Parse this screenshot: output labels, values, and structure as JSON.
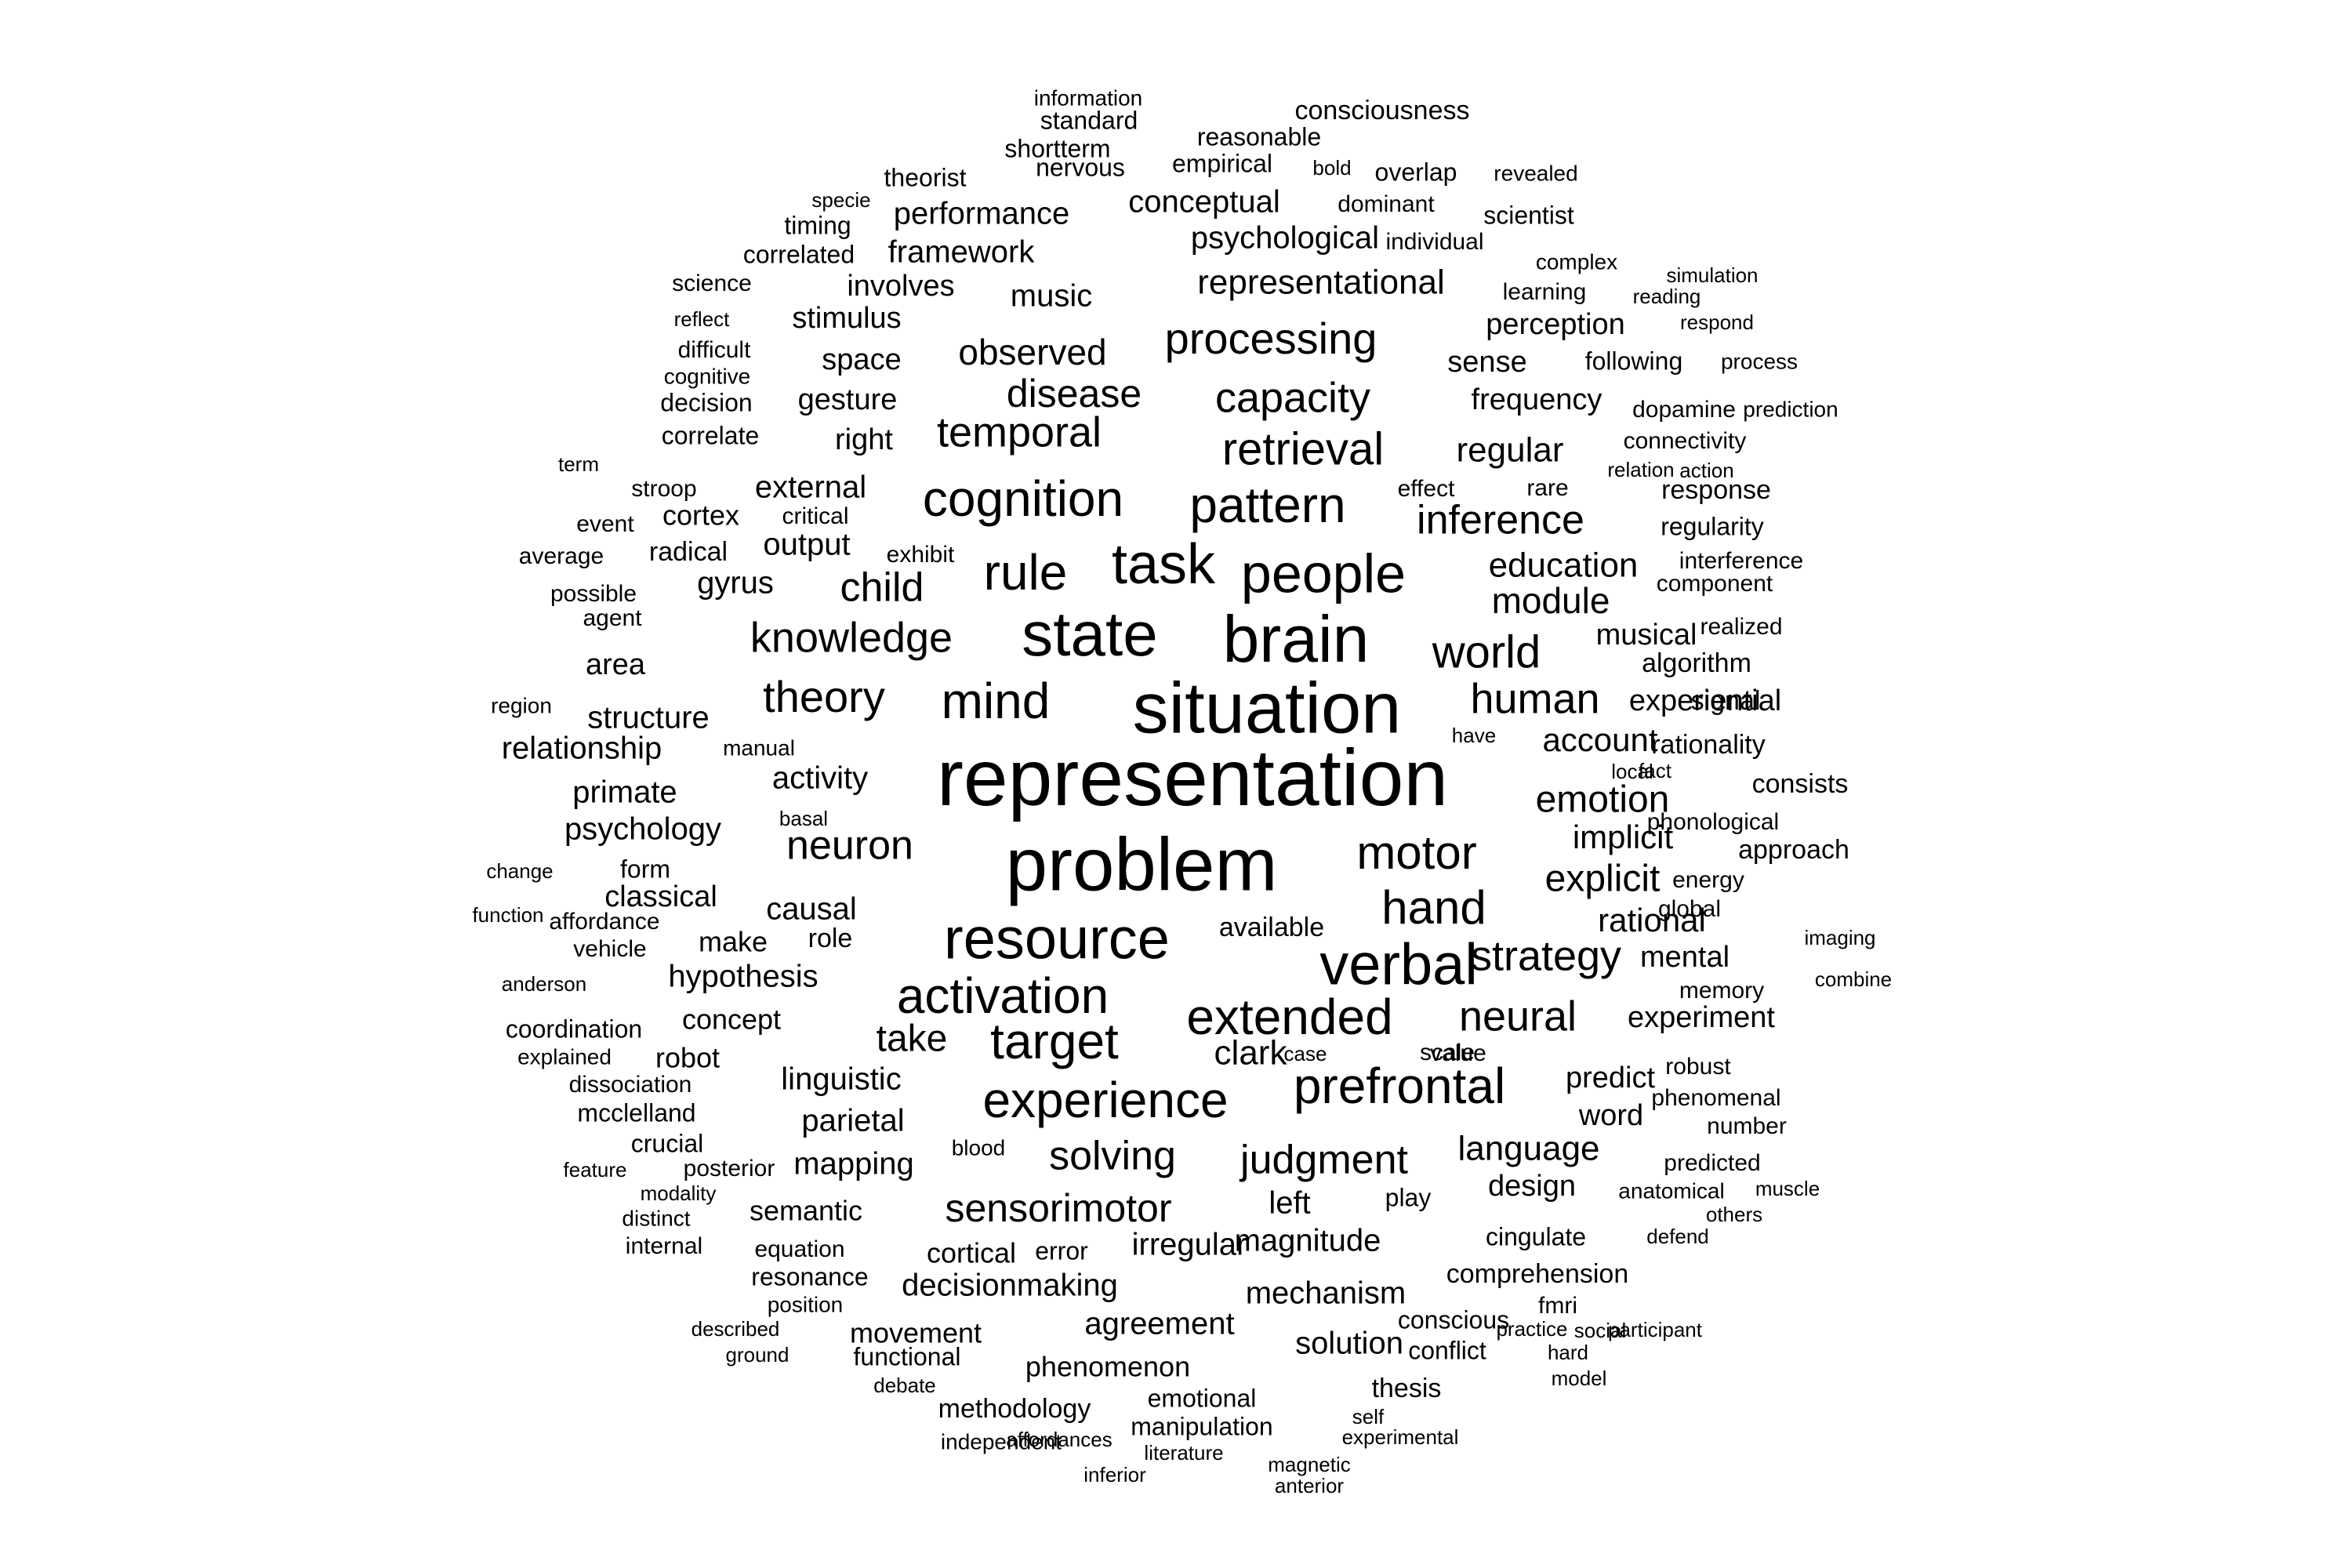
{
  "word_cloud": {
    "text_color": "#000000",
    "background_color": "#ffffff",
    "words": [
      "representation",
      "problem",
      "situation",
      "brain",
      "state",
      "resource",
      "verbal",
      "task",
      "people",
      "rule",
      "pattern",
      "cognition",
      "mind",
      "target",
      "activation",
      "extended",
      "experience",
      "prefrontal",
      "motor",
      "hand",
      "retrieval",
      "processing",
      "capacity",
      "temporal",
      "disease",
      "observed",
      "knowledge",
      "theory",
      "world",
      "human",
      "strategy",
      "neural",
      "inference",
      "neuron",
      "child",
      "judgment",
      "solving",
      "sensorimotor",
      "emotion",
      "explicit",
      "language",
      "module",
      "education",
      "regular",
      "representational",
      "psychological",
      "conceptual",
      "performance",
      "framework",
      "music",
      "involves",
      "stimulus",
      "space",
      "gesture",
      "right",
      "external",
      "cortex",
      "output",
      "gyrus",
      "structure",
      "relationship",
      "activity",
      "primate",
      "psychology",
      "causal",
      "make",
      "hypothesis",
      "concept",
      "robot",
      "linguistic",
      "parietal",
      "mapping",
      "semantic",
      "cortical",
      "decisionmaking",
      "movement",
      "functional",
      "phenomenon",
      "methodology",
      "manipulation",
      "emotional",
      "mechanism",
      "agreement",
      "solution",
      "magnitude",
      "irregular",
      "left",
      "clark",
      "take",
      "account",
      "implicit",
      "rational",
      "mental",
      "musical",
      "experiential",
      "experiment",
      "predict",
      "word",
      "design",
      "comprehension",
      "perception",
      "sense",
      "frequency",
      "information",
      "standard",
      "consciousness",
      "reasonable",
      "shortterm",
      "nervous",
      "empirical",
      "bold",
      "overlap",
      "revealed",
      "theorist",
      "dominant",
      "scientist",
      "individual",
      "complex",
      "learning",
      "simulation",
      "reading",
      "respond",
      "following",
      "process",
      "dopamine",
      "prediction",
      "connectivity",
      "relation",
      "action",
      "response",
      "regularity",
      "interference",
      "component",
      "realized",
      "algorithm",
      "signal",
      "rationality",
      "consists",
      "phonological",
      "approach",
      "energy",
      "global",
      "imaging",
      "combine",
      "memory",
      "robust",
      "phenomenal",
      "number",
      "predicted",
      "muscle",
      "anatomical",
      "others",
      "defend",
      "cingulate",
      "fmri",
      "practice",
      "social",
      "participant",
      "hard",
      "model",
      "conscious",
      "conflict",
      "scale",
      "value",
      "case",
      "available",
      "role",
      "play",
      "error",
      "blood",
      "posterior",
      "modality",
      "distinct",
      "internal",
      "equation",
      "resonance",
      "position",
      "described",
      "ground",
      "debate",
      "independent",
      "affordances",
      "inferior",
      "literature",
      "magnetic",
      "anterior",
      "experimental",
      "self",
      "thesis",
      "specie",
      "timing",
      "correlated",
      "science",
      "reflect",
      "difficult",
      "cognitive",
      "decision",
      "correlate",
      "term",
      "stroop",
      "event",
      "average",
      "possible",
      "agent",
      "area",
      "region",
      "change",
      "function",
      "affordance",
      "vehicle",
      "anderson",
      "coordination",
      "explained",
      "dissociation",
      "mcclelland",
      "crucial",
      "feature",
      "form",
      "classical",
      "basal",
      "manual",
      "local",
      "fact",
      "have",
      "exhibit",
      "radical",
      "critical",
      "effect",
      "rare"
    ]
  }
}
